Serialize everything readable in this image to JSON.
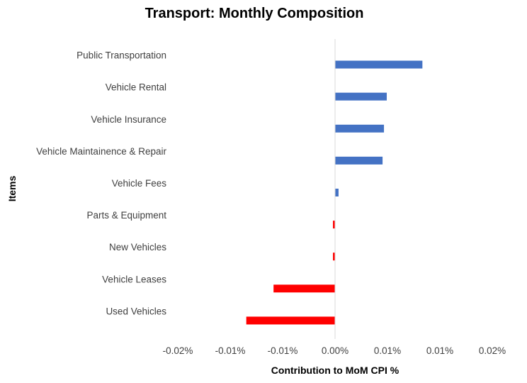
{
  "chart_data": {
    "type": "bar",
    "orientation": "horizontal",
    "title": "Transport: Monthly Composition",
    "xlabel": "Contribution to MoM CPI %",
    "ylabel": "Items",
    "xlim": [
      -0.0225,
      0.0225
    ],
    "x_ticks": [
      -0.0225,
      -0.015,
      -0.0075,
      0.0,
      0.0075,
      0.015,
      0.0225
    ],
    "x_tick_labels": [
      "-0.02%",
      "-0.01%",
      "-0.01%",
      "0.00%",
      "0.01%",
      "0.01%",
      "0.02%"
    ],
    "categories": [
      "Public Transportation",
      "Vehicle Rental",
      "Vehicle Insurance",
      "Vehicle Maintainence & Repair",
      "Vehicle Fees",
      "Parts & Equipment",
      "New Vehicles",
      "Vehicle Leases",
      "Used Vehicles"
    ],
    "values": [
      0.0125,
      0.0074,
      0.007,
      0.0068,
      0.0005,
      -0.0003,
      -0.0003,
      -0.0088,
      -0.0127
    ],
    "positive_color": "#4472C4",
    "negative_color": "#FF0000",
    "grid": false,
    "legend": "none"
  }
}
